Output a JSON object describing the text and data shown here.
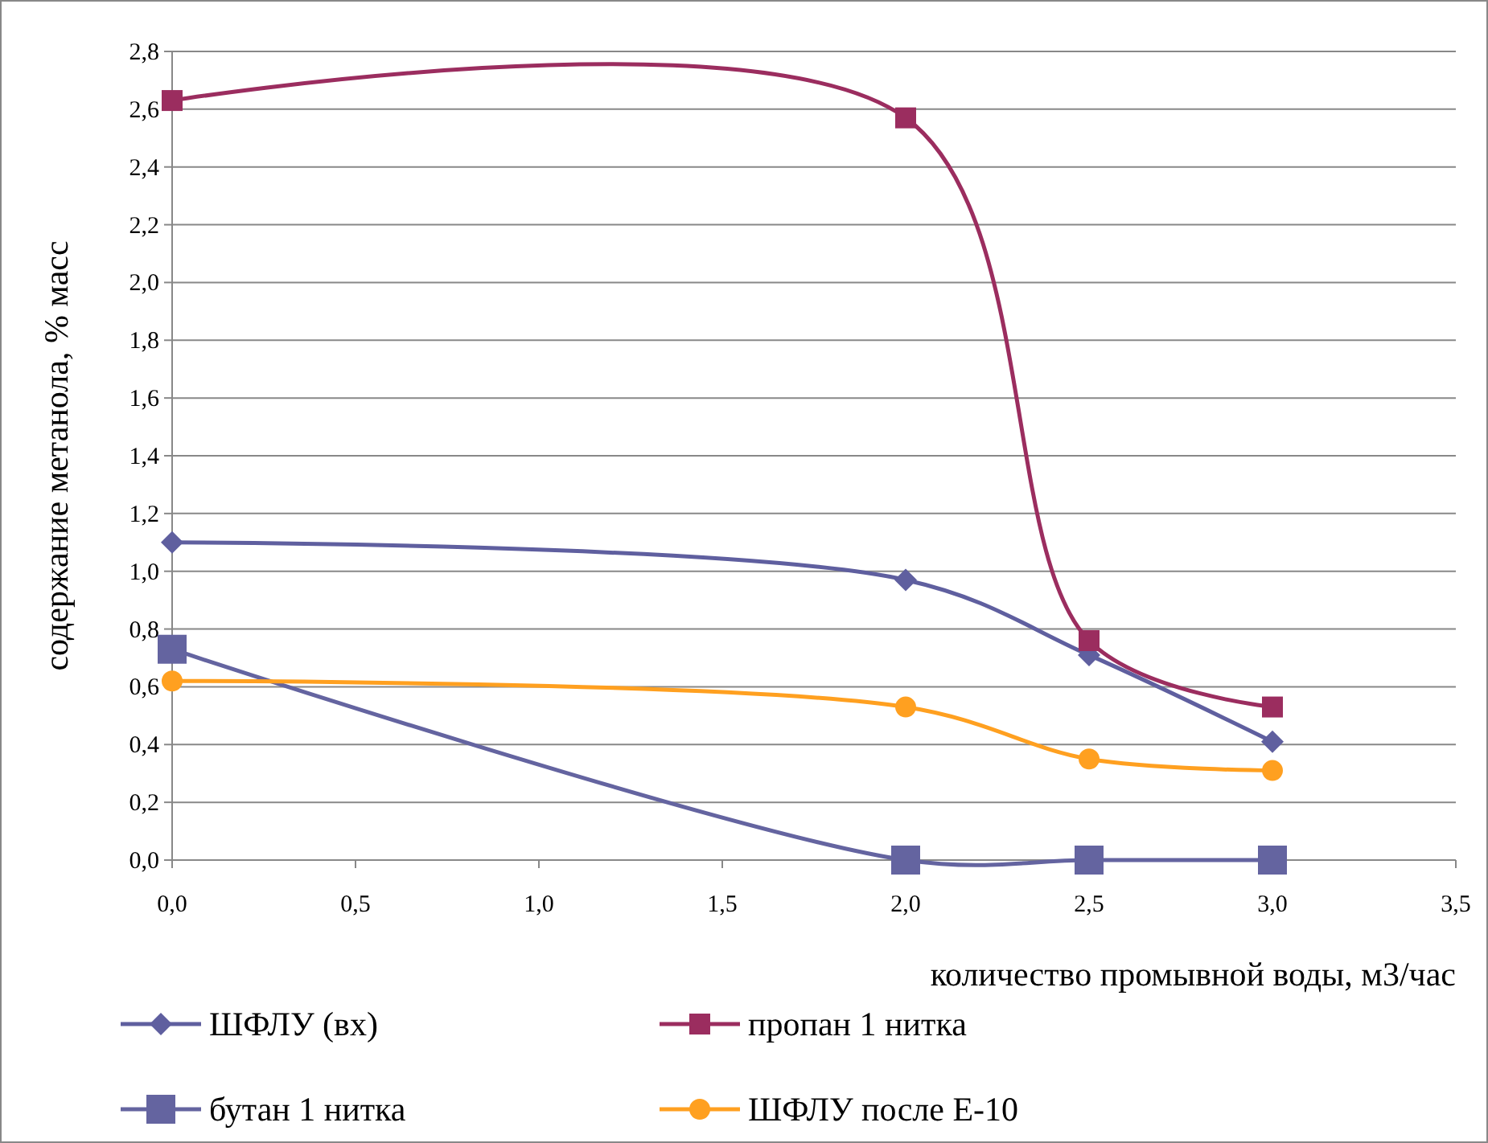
{
  "chart_data": {
    "type": "line",
    "xlabel": "количество промывной воды, м3/час",
    "ylabel": "содержание метанола, % масс",
    "x": [
      0,
      2,
      2.5,
      3
    ],
    "series": [
      {
        "name": "ШФЛУ (вх)",
        "color": "#5f5f9f",
        "marker": "diamond",
        "values": [
          1.1,
          0.97,
          0.71,
          0.41
        ]
      },
      {
        "name": "пропан 1 нитка",
        "color": "#9b2d5f",
        "marker": "square",
        "values": [
          2.63,
          2.57,
          0.76,
          0.53
        ]
      },
      {
        "name": "бутан 1 нитка",
        "color": "#6464a0",
        "marker": "square",
        "values": [
          0.73,
          0.0,
          0.0,
          0.0
        ]
      },
      {
        "name": "ШФЛУ после Е-10",
        "color": "#ffa020",
        "marker": "circle",
        "values": [
          0.62,
          0.53,
          0.35,
          0.31
        ]
      }
    ],
    "xlim": [
      0,
      3.5
    ],
    "xticks": [
      {
        "value": 0,
        "label": "0,0"
      },
      {
        "value": 0.5,
        "label": "0,5"
      },
      {
        "value": 1,
        "label": "1,0"
      },
      {
        "value": 1.5,
        "label": "1,5"
      },
      {
        "value": 2,
        "label": "2,0"
      },
      {
        "value": 2.5,
        "label": "2,5"
      },
      {
        "value": 3,
        "label": "3,0"
      },
      {
        "value": 3.5,
        "label": "3,5"
      }
    ],
    "ylim": [
      0,
      2.8
    ],
    "yticks": [
      {
        "value": 0,
        "label": "0,0"
      },
      {
        "value": 0.2,
        "label": "0,2"
      },
      {
        "value": 0.4,
        "label": "0,4"
      },
      {
        "value": 0.6,
        "label": "0,6"
      },
      {
        "value": 0.8,
        "label": "0,8"
      },
      {
        "value": 1,
        "label": "1,0"
      },
      {
        "value": 1.2,
        "label": "1,2"
      },
      {
        "value": 1.4,
        "label": "1,4"
      },
      {
        "value": 1.6,
        "label": "1,6"
      },
      {
        "value": 1.8,
        "label": "1,8"
      },
      {
        "value": 2,
        "label": "2,0"
      },
      {
        "value": 2.2,
        "label": "2,2"
      },
      {
        "value": 2.4,
        "label": "2,4"
      },
      {
        "value": 2.6,
        "label": "2,6"
      },
      {
        "value": 2.8,
        "label": "2,8"
      }
    ],
    "grid": "y",
    "legend": "bottom"
  }
}
